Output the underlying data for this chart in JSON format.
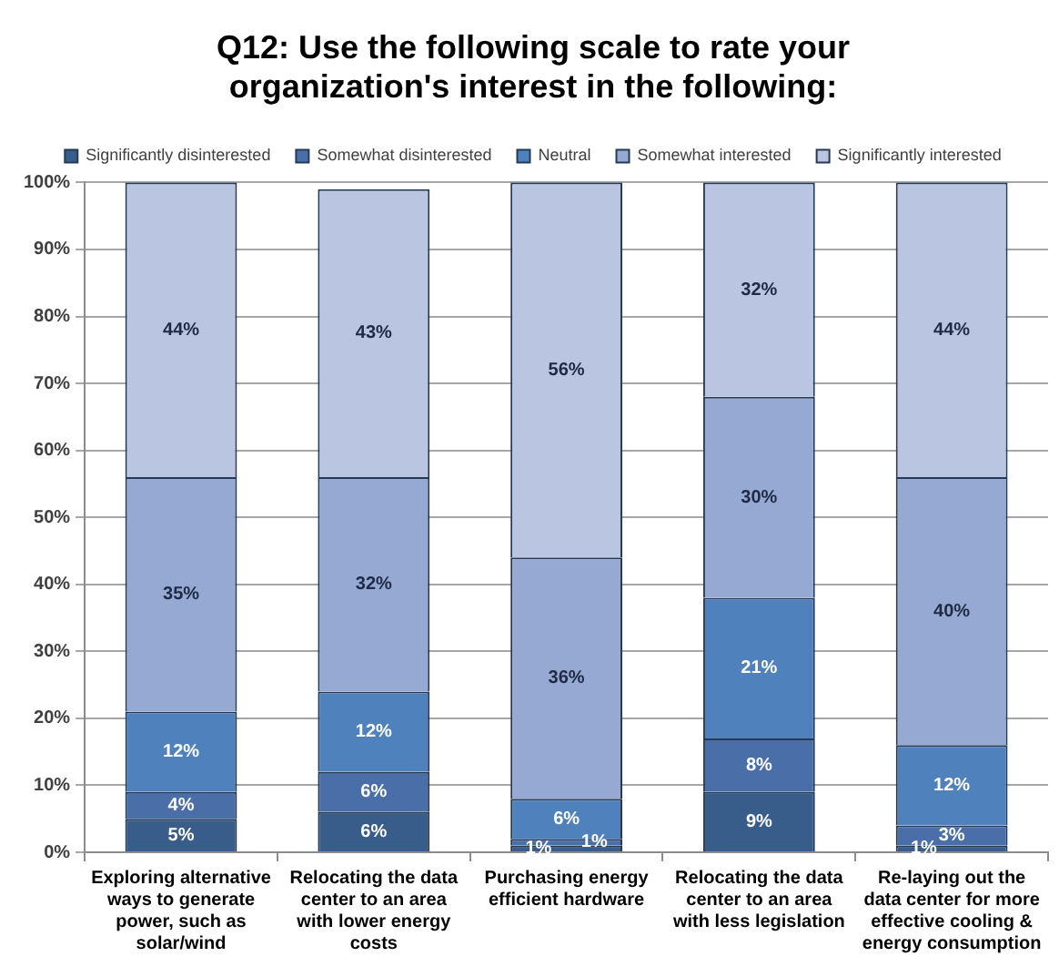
{
  "chart_data": {
    "type": "bar",
    "title": "Q12: Use the following scale to rate your organization's interest in the following:",
    "categories": [
      "Exploring alternative ways to generate power, such as solar/wind",
      "Relocating the data center to an area with lower energy costs",
      "Purchasing energy efficient hardware",
      "Relocating the data center to an area with less legislation",
      "Re-laying out the data center for more effective cooling & energy consumption"
    ],
    "series": [
      {
        "name": "Significantly disinterested",
        "color": "#385d8a",
        "values": [
          5,
          6,
          1,
          9,
          1
        ],
        "value_labels": [
          "5%",
          "6%",
          "1%",
          "9%",
          "1%"
        ]
      },
      {
        "name": "Somewhat disinterested",
        "color": "#4a6ea8",
        "values": [
          4,
          6,
          1,
          8,
          3
        ],
        "value_labels": [
          "4%",
          "6%",
          "1%",
          "8%",
          "3%"
        ]
      },
      {
        "name": "Neutral",
        "color": "#4f81bd",
        "values": [
          12,
          12,
          6,
          21,
          12
        ],
        "value_labels": [
          "12%",
          "12%",
          "6%",
          "21%",
          "12%"
        ]
      },
      {
        "name": "Somewhat interested",
        "color": "#95a9d3",
        "values": [
          35,
          32,
          36,
          30,
          40
        ],
        "value_labels": [
          "35%",
          "32%",
          "36%",
          "30%",
          "40%"
        ]
      },
      {
        "name": "Significantly interested",
        "color": "#b9c5e1",
        "values": [
          44,
          43,
          56,
          32,
          44
        ],
        "value_labels": [
          "44%",
          "43%",
          "56%",
          "32%",
          "44%"
        ]
      }
    ],
    "stacked": true,
    "ylim": [
      0,
      100
    ],
    "yticks": [
      {
        "value": 0,
        "label": "0%"
      },
      {
        "value": 10,
        "label": "10%"
      },
      {
        "value": 20,
        "label": "20%"
      },
      {
        "value": 30,
        "label": "30%"
      },
      {
        "value": 40,
        "label": "40%"
      },
      {
        "value": 50,
        "label": "50%"
      },
      {
        "value": 60,
        "label": "60%"
      },
      {
        "value": 70,
        "label": "70%"
      },
      {
        "value": 80,
        "label": "80%"
      },
      {
        "value": 90,
        "label": "90%"
      },
      {
        "value": 100,
        "label": "100%"
      }
    ],
    "grid": "y",
    "legend": "top"
  }
}
